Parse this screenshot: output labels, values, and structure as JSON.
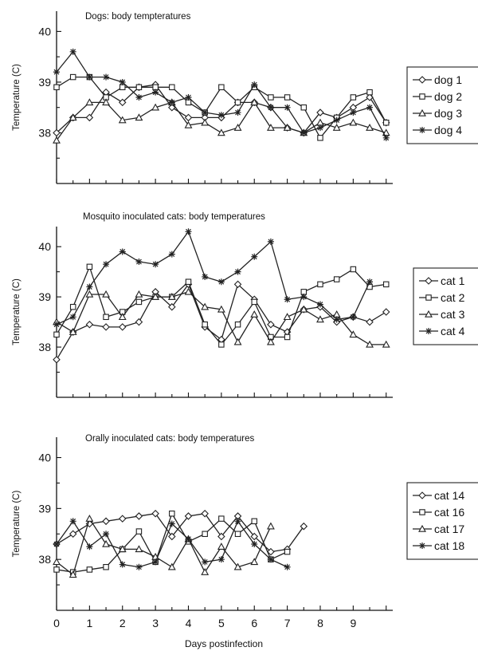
{
  "figure": {
    "xlabel": "Days postinfection",
    "x_ticks": [
      0,
      1,
      2,
      3,
      4,
      5,
      6,
      7,
      8,
      9
    ]
  },
  "chart_data": [
    {
      "type": "line",
      "title": "Dogs:  body tempteratures",
      "ylabel": "Temperature (C)",
      "ylim": [
        37.0,
        40.4
      ],
      "yticks": [
        38,
        39,
        40
      ],
      "xlim": [
        0,
        10.2
      ],
      "series": [
        {
          "name": "dog 1",
          "marker": "diamond",
          "x": [
            0,
            0.5,
            1,
            1.5,
            2,
            2.5,
            3,
            3.5,
            4,
            4.5,
            5,
            5.5,
            6,
            6.5,
            7,
            7.5,
            8,
            8.5,
            9,
            9.5,
            10
          ],
          "y": [
            38.0,
            38.3,
            38.3,
            38.8,
            38.6,
            38.9,
            38.95,
            38.5,
            38.3,
            38.3,
            38.3,
            38.6,
            38.6,
            38.5,
            38.1,
            38.0,
            38.4,
            38.3,
            38.5,
            38.7,
            38.2
          ]
        },
        {
          "name": "dog 2",
          "marker": "square",
          "x": [
            0,
            0.5,
            1,
            1.5,
            2,
            2.5,
            3,
            3.5,
            4,
            4.5,
            5,
            5.5,
            6,
            6.5,
            7,
            7.5,
            8,
            8.5,
            9,
            9.5,
            10
          ],
          "y": [
            38.9,
            39.1,
            39.1,
            38.7,
            38.9,
            38.9,
            38.9,
            38.9,
            38.6,
            38.4,
            38.9,
            38.6,
            38.9,
            38.7,
            38.7,
            38.5,
            37.9,
            38.3,
            38.7,
            38.8,
            38.2
          ]
        },
        {
          "name": "dog 3",
          "marker": "triangle",
          "x": [
            0,
            0.5,
            1,
            1.5,
            2,
            2.5,
            3,
            3.5,
            4,
            4.5,
            5,
            5.5,
            6,
            6.5,
            7,
            7.5,
            8,
            8.5,
            9,
            9.5,
            10
          ],
          "y": [
            37.85,
            38.3,
            38.6,
            38.6,
            38.25,
            38.3,
            38.5,
            38.6,
            38.15,
            38.2,
            38.0,
            38.1,
            38.6,
            38.1,
            38.1,
            38.0,
            38.2,
            38.1,
            38.2,
            38.1,
            38.0
          ]
        },
        {
          "name": "dog 4",
          "marker": "star",
          "x": [
            0,
            0.5,
            1,
            1.5,
            2,
            2.5,
            3,
            3.5,
            4,
            4.5,
            5,
            5.5,
            6,
            6.5,
            7,
            7.5,
            8,
            8.5,
            9,
            9.5,
            10
          ],
          "y": [
            39.2,
            39.6,
            39.1,
            39.1,
            39.0,
            38.7,
            38.8,
            38.6,
            38.7,
            38.4,
            38.35,
            38.4,
            38.95,
            38.5,
            38.5,
            38.0,
            38.1,
            38.25,
            38.4,
            38.5,
            37.9
          ]
        }
      ]
    },
    {
      "type": "line",
      "title": "Mosquito inoculated cats: body temperatures",
      "ylabel": "Temperature (C)",
      "ylim": [
        37.0,
        40.4
      ],
      "yticks": [
        38,
        39,
        40
      ],
      "xlim": [
        0,
        10.2
      ],
      "series": [
        {
          "name": "cat 1",
          "marker": "diamond",
          "x": [
            0,
            0.5,
            1,
            1.5,
            2,
            2.5,
            3,
            3.5,
            4,
            4.5,
            5,
            5.5,
            6,
            6.5,
            7,
            7.5,
            8,
            8.5,
            9,
            9.5,
            10
          ],
          "y": [
            37.75,
            38.3,
            38.45,
            38.4,
            38.4,
            38.5,
            39.1,
            38.8,
            39.25,
            38.4,
            38.15,
            39.25,
            38.95,
            38.45,
            38.3,
            38.75,
            38.8,
            38.5,
            38.6,
            38.5,
            38.7
          ]
        },
        {
          "name": "cat 2",
          "marker": "square",
          "x": [
            0,
            0.5,
            1,
            1.5,
            2,
            2.5,
            3,
            3.5,
            4,
            4.5,
            5,
            5.5,
            6,
            6.5,
            7,
            7.5,
            8,
            8.5,
            9,
            9.5,
            10
          ],
          "y": [
            38.25,
            38.8,
            39.6,
            38.6,
            38.7,
            38.9,
            39.0,
            39.0,
            39.3,
            38.45,
            38.05,
            38.45,
            38.9,
            38.2,
            38.2,
            39.1,
            39.25,
            39.35,
            39.55,
            39.2,
            39.25
          ]
        },
        {
          "name": "cat 3",
          "marker": "triangle",
          "x": [
            0,
            0.5,
            1,
            1.5,
            2,
            2.5,
            3,
            3.5,
            4,
            4.5,
            5,
            5.5,
            6,
            6.5,
            7,
            7.5,
            8,
            8.5,
            9,
            9.5,
            10
          ],
          "y": [
            38.5,
            38.3,
            39.05,
            39.05,
            38.6,
            39.05,
            39.0,
            39.0,
            39.1,
            38.8,
            38.75,
            38.1,
            38.65,
            38.1,
            38.6,
            38.75,
            38.55,
            38.65,
            38.25,
            38.05,
            38.05
          ]
        },
        {
          "name": "cat 4",
          "marker": "star",
          "x": [
            0,
            0.5,
            1,
            1.5,
            2,
            2.5,
            3,
            3.5,
            4,
            4.5,
            5,
            5.5,
            6,
            6.5,
            7,
            7.5,
            8,
            8.5,
            9,
            9.5
          ],
          "y": [
            38.45,
            38.6,
            39.2,
            39.65,
            39.9,
            39.7,
            39.65,
            39.85,
            40.3,
            39.4,
            39.3,
            39.5,
            39.8,
            40.1,
            38.95,
            39.0,
            38.85,
            38.55,
            38.6,
            39.3
          ]
        }
      ]
    },
    {
      "type": "line",
      "title": "Orally inoculated cats: body temperatures",
      "ylabel": "Temperature (C)",
      "ylim": [
        37.0,
        40.4
      ],
      "yticks": [
        38,
        39,
        40
      ],
      "xlim": [
        0,
        10.2
      ],
      "series": [
        {
          "name": "cat 14",
          "marker": "diamond",
          "x": [
            0,
            0.5,
            1,
            1.5,
            2,
            2.5,
            3,
            3.5,
            4,
            4.5,
            5,
            5.5,
            6,
            6.5,
            7,
            7.5
          ],
          "y": [
            38.3,
            38.5,
            38.7,
            38.75,
            38.8,
            38.85,
            38.9,
            38.45,
            38.85,
            38.9,
            38.45,
            38.85,
            38.45,
            38.15,
            38.2,
            38.65
          ]
        },
        {
          "name": "cat 16",
          "marker": "square",
          "x": [
            0,
            0.5,
            1,
            1.5,
            2,
            2.5,
            3,
            3.5,
            4,
            4.5,
            5,
            5.5,
            6,
            6.5,
            7
          ],
          "y": [
            37.8,
            37.75,
            37.8,
            37.85,
            38.2,
            38.55,
            37.95,
            38.9,
            38.35,
            38.5,
            38.8,
            38.5,
            38.75,
            38.0,
            38.15
          ]
        },
        {
          "name": "cat 17",
          "marker": "triangle",
          "x": [
            0,
            0.5,
            1,
            1.5,
            2,
            2.5,
            3,
            3.5,
            4,
            4.5,
            5,
            5.5,
            6,
            6.5
          ],
          "y": [
            37.95,
            37.7,
            38.8,
            38.3,
            38.2,
            38.2,
            38.05,
            37.85,
            38.4,
            37.75,
            38.25,
            37.85,
            37.95,
            38.65
          ]
        },
        {
          "name": "cat 18",
          "marker": "star",
          "x": [
            0,
            0.5,
            1,
            1.5,
            2,
            2.5,
            3,
            3.5,
            4,
            4.5,
            5,
            5.5,
            6,
            6.5,
            7
          ],
          "y": [
            38.3,
            38.75,
            38.25,
            38.5,
            37.9,
            37.85,
            37.95,
            38.7,
            38.4,
            37.95,
            38.0,
            38.75,
            38.3,
            38.0,
            37.85
          ]
        }
      ]
    }
  ]
}
